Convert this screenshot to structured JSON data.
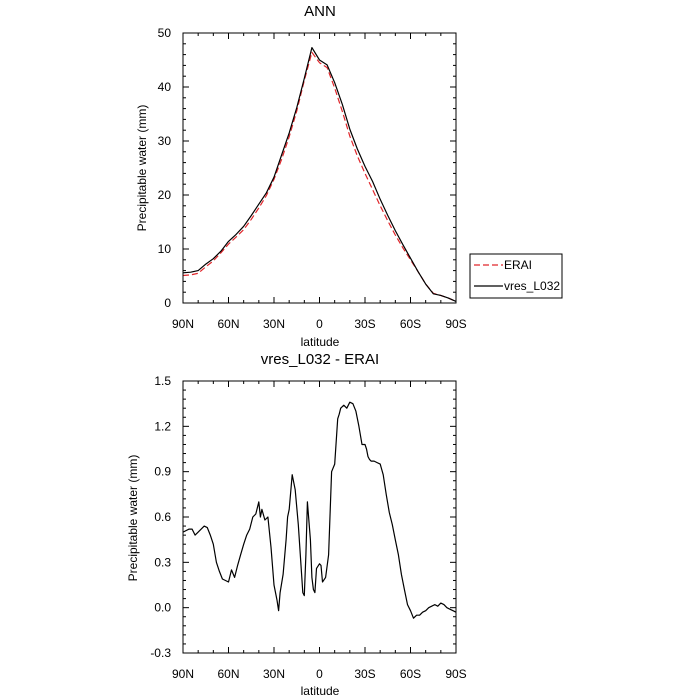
{
  "chart_data": [
    {
      "type": "line",
      "title": "ANN",
      "xlabel": "latitude",
      "ylabel": "Precipitable water (mm)",
      "xlim": [
        90,
        -90
      ],
      "ylim": [
        0,
        50
      ],
      "x_ticks": [
        90,
        60,
        30,
        0,
        -30,
        -60,
        -90
      ],
      "x_tick_labels": [
        "90N",
        "60N",
        "30N",
        "0",
        "30S",
        "60S",
        "90S"
      ],
      "y_ticks": [
        0,
        10,
        20,
        30,
        40,
        50
      ],
      "y_tick_labels": [
        "0",
        "10",
        "20",
        "30",
        "40",
        "50"
      ],
      "legend": [
        "ERAI",
        "vres_L032"
      ],
      "series": [
        {
          "name": "ERAI",
          "color": "#e0262b",
          "dash": "dashed",
          "x": [
            90,
            85,
            80,
            75,
            70,
            65,
            60,
            55,
            50,
            45,
            40,
            35,
            30,
            25,
            20,
            15,
            10,
            5,
            0,
            -5,
            -10,
            -15,
            -20,
            -25,
            -30,
            -35,
            -40,
            -45,
            -50,
            -55,
            -60,
            -65,
            -70,
            -75,
            -80,
            -85,
            -90
          ],
          "y": [
            5.1,
            5.2,
            5.5,
            6.7,
            7.8,
            9.3,
            10.9,
            12.2,
            13.6,
            15.5,
            17.6,
            19.9,
            22.9,
            26.6,
            30.8,
            35.6,
            41.2,
            46.4,
            44.5,
            43.6,
            39.8,
            35.5,
            30.9,
            27.2,
            24.0,
            21.0,
            18.0,
            15.2,
            12.6,
            10.2,
            8.0,
            5.8,
            3.5,
            1.8,
            1.4,
            0.9,
            0.3
          ]
        },
        {
          "name": "vres_L032",
          "color": "#000000",
          "dash": "solid",
          "x": [
            90,
            85,
            80,
            75,
            70,
            65,
            60,
            55,
            50,
            45,
            40,
            35,
            30,
            25,
            20,
            15,
            10,
            5,
            0,
            -5,
            -10,
            -15,
            -20,
            -25,
            -30,
            -35,
            -40,
            -45,
            -50,
            -55,
            -60,
            -65,
            -70,
            -75,
            -80,
            -85,
            -90
          ],
          "y": [
            5.6,
            5.7,
            6.0,
            7.2,
            8.2,
            9.6,
            11.4,
            12.7,
            14.2,
            16.2,
            18.3,
            20.4,
            23.3,
            27.4,
            31.5,
            36.2,
            41.6,
            47.3,
            45.0,
            44.1,
            40.8,
            36.8,
            32.2,
            28.5,
            25.3,
            22.5,
            19.2,
            16.2,
            13.4,
            10.8,
            8.3,
            5.8,
            3.5,
            1.7,
            1.4,
            0.9,
            0.3
          ]
        }
      ]
    },
    {
      "type": "line",
      "title": "vres_L032 - ERAI",
      "xlabel": "latitude",
      "ylabel": "Precipitable water (mm)",
      "xlim": [
        90,
        -90
      ],
      "ylim": [
        -0.3,
        1.5
      ],
      "x_ticks": [
        90,
        60,
        30,
        0,
        -30,
        -60,
        -90
      ],
      "x_tick_labels": [
        "90N",
        "60N",
        "30N",
        "0",
        "30S",
        "60S",
        "90S"
      ],
      "y_ticks": [
        -0.3,
        0.0,
        0.3,
        0.6,
        0.9,
        1.2,
        1.5
      ],
      "y_tick_labels": [
        "-0.3",
        "0.0",
        "0.3",
        "0.6",
        "0.9",
        "1.2",
        "1.5"
      ],
      "series": [
        {
          "name": "vres_L032 - ERAI",
          "color": "#000000",
          "dash": "solid",
          "x": [
            90,
            88,
            86,
            84,
            82,
            80,
            78,
            76,
            74,
            72,
            70,
            68,
            66,
            64,
            62,
            60,
            58,
            56,
            54,
            52,
            50,
            48,
            46,
            44,
            42,
            40,
            39,
            38,
            36,
            34,
            32,
            30,
            28,
            27,
            26,
            24,
            22,
            21,
            20,
            18,
            16,
            14,
            12,
            11,
            10,
            9,
            8,
            6,
            5,
            4,
            3,
            2,
            0,
            -1,
            -2,
            -4,
            -6,
            -8,
            -10,
            -12,
            -13,
            -14,
            -16,
            -18,
            -20,
            -22,
            -24,
            -26,
            -28,
            -30,
            -31,
            -32,
            -33,
            -34,
            -36,
            -38,
            -40,
            -42,
            -44,
            -46,
            -48,
            -50,
            -52,
            -54,
            -56,
            -58,
            -60,
            -62,
            -64,
            -66,
            -68,
            -70,
            -72,
            -74,
            -76,
            -78,
            -80,
            -82,
            -84,
            -86,
            -88,
            -90
          ],
          "y": [
            0.5,
            0.51,
            0.52,
            0.52,
            0.48,
            0.5,
            0.52,
            0.54,
            0.53,
            0.48,
            0.42,
            0.3,
            0.24,
            0.19,
            0.18,
            0.17,
            0.25,
            0.2,
            0.28,
            0.35,
            0.42,
            0.48,
            0.52,
            0.6,
            0.62,
            0.7,
            0.6,
            0.65,
            0.58,
            0.6,
            0.4,
            0.15,
            0.05,
            -0.02,
            0.1,
            0.22,
            0.45,
            0.6,
            0.65,
            0.88,
            0.78,
            0.55,
            0.25,
            0.1,
            0.08,
            0.35,
            0.7,
            0.45,
            0.2,
            0.12,
            0.1,
            0.26,
            0.29,
            0.28,
            0.17,
            0.2,
            0.35,
            0.9,
            0.95,
            1.25,
            1.28,
            1.32,
            1.34,
            1.32,
            1.36,
            1.35,
            1.3,
            1.2,
            1.08,
            1.08,
            1.05,
            1.0,
            0.98,
            0.97,
            0.97,
            0.96,
            0.95,
            0.88,
            0.75,
            0.63,
            0.55,
            0.45,
            0.35,
            0.22,
            0.12,
            0.02,
            -0.02,
            -0.07,
            -0.05,
            -0.05,
            -0.03,
            -0.02,
            0.0,
            0.01,
            0.02,
            0.01,
            0.03,
            0.02,
            0.0,
            -0.01,
            -0.02,
            -0.03
          ]
        }
      ]
    }
  ]
}
